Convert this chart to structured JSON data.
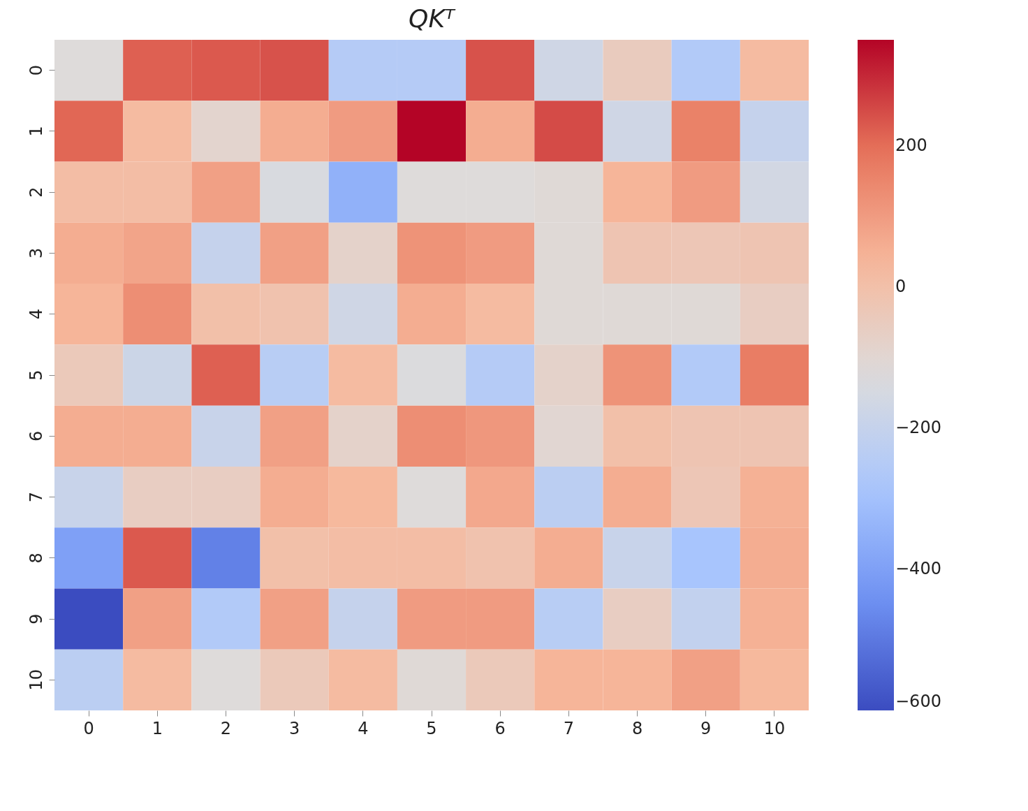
{
  "chart_data": {
    "type": "heatmap",
    "title": "QKᵀ",
    "categories": [
      "0",
      "1",
      "2",
      "3",
      "4",
      "5",
      "6",
      "7",
      "8",
      "9",
      "10"
    ],
    "y_categories": [
      "0",
      "1",
      "2",
      "3",
      "4",
      "5",
      "6",
      "7",
      "8",
      "9",
      "10"
    ],
    "cells": [
      [
        -120,
        220,
        230,
        240,
        -250,
        -250,
        240,
        -170,
        -50,
        -260,
        20
      ],
      [
        210,
        20,
        -90,
        60,
        100,
        350,
        60,
        250,
        -170,
        160,
        -200
      ],
      [
        10,
        10,
        90,
        -140,
        -350,
        -120,
        -120,
        -110,
        40,
        100,
        -160
      ],
      [
        60,
        80,
        -200,
        90,
        -80,
        120,
        100,
        -110,
        -20,
        -30,
        -20
      ],
      [
        40,
        130,
        0,
        -10,
        -170,
        60,
        20,
        -110,
        -110,
        -110,
        -60
      ],
      [
        -40,
        -180,
        220,
        -240,
        20,
        -130,
        -250,
        -80,
        120,
        -260,
        170
      ],
      [
        60,
        60,
        -190,
        90,
        -80,
        130,
        110,
        -100,
        0,
        -20,
        -20
      ],
      [
        -190,
        -60,
        -60,
        60,
        30,
        -120,
        70,
        -230,
        60,
        -30,
        50
      ],
      [
        -400,
        230,
        -480,
        0,
        10,
        10,
        -10,
        60,
        -190,
        -290,
        60
      ],
      [
        -600,
        90,
        -260,
        90,
        -200,
        100,
        100,
        -240,
        -60,
        -210,
        50
      ],
      [
        -230,
        20,
        -120,
        -40,
        20,
        -110,
        -40,
        40,
        40,
        90,
        30
      ]
    ],
    "clim": [
      -600,
      350
    ],
    "cticks": [
      200,
      0,
      -200,
      -400,
      -600
    ]
  }
}
